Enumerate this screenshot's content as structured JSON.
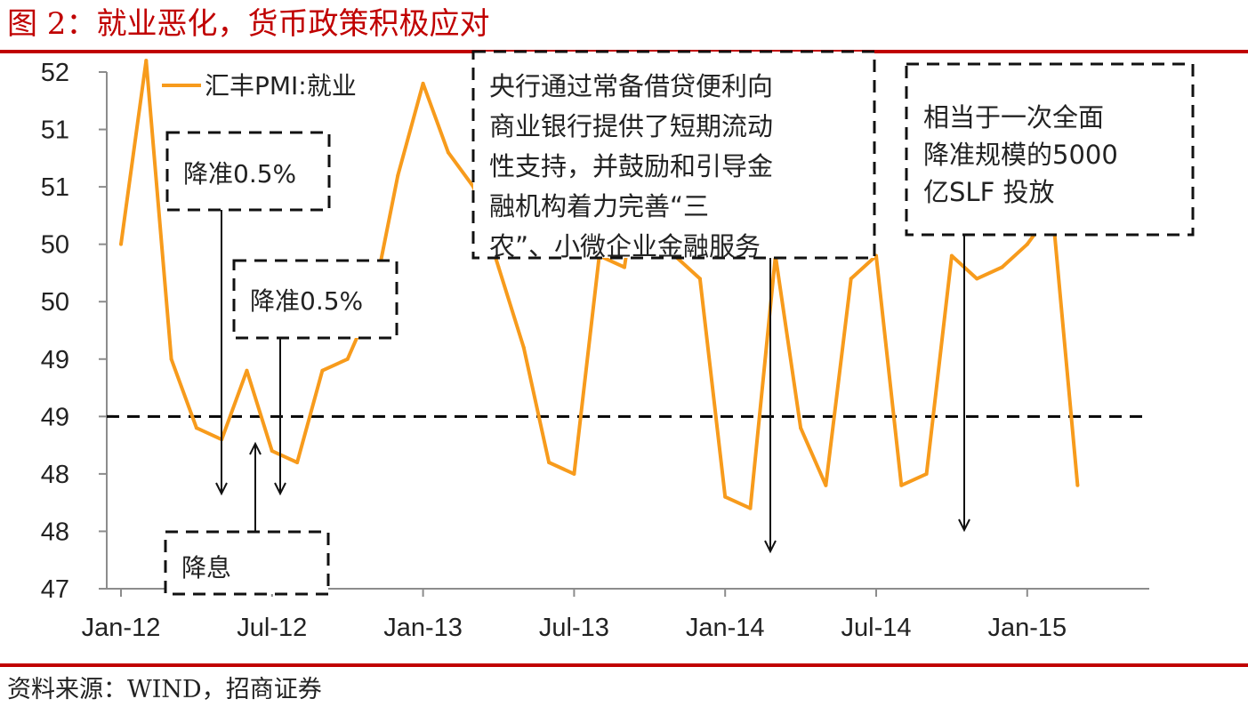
{
  "figure": {
    "title": "图 2：就业恶化，货币政策积极应对",
    "source": "资料来源：WIND，招商证券"
  },
  "chart_data": {
    "type": "line",
    "series": [
      {
        "name": "汇丰PMI:就业",
        "color": "#f79b1c",
        "x": [
          "2012-01",
          "2012-02",
          "2012-03",
          "2012-04",
          "2012-05",
          "2012-06",
          "2012-07",
          "2012-08",
          "2012-09",
          "2012-10",
          "2012-11",
          "2012-12",
          "2013-01",
          "2013-02",
          "2013-03",
          "2013-04",
          "2013-05",
          "2013-06",
          "2013-07",
          "2013-08",
          "2013-09",
          "2013-10",
          "2013-11",
          "2013-12",
          "2014-01",
          "2014-02",
          "2014-03",
          "2014-04",
          "2014-05",
          "2014-06",
          "2014-07",
          "2014-08",
          "2014-09",
          "2014-10",
          "2014-11",
          "2014-12",
          "2015-01",
          "2015-02",
          "2015-03"
        ],
        "values": [
          50.0,
          51.6,
          49.0,
          48.4,
          48.3,
          48.9,
          48.2,
          48.1,
          48.9,
          49.0,
          49.5,
          50.6,
          51.4,
          50.8,
          50.5,
          49.8,
          49.1,
          48.1,
          48.0,
          49.9,
          49.8,
          51.3,
          49.9,
          49.7,
          47.8,
          47.7,
          49.9,
          48.4,
          47.9,
          49.7,
          49.9,
          47.9,
          48.0,
          49.9,
          49.7,
          49.8,
          50.0,
          50.3,
          47.9
        ]
      }
    ],
    "x_tick_labels": [
      "Jan-12",
      "Jul-12",
      "Jan-13",
      "Jul-13",
      "Jan-14",
      "Jul-14",
      "Jan-15"
    ],
    "y_tick_labels": [
      "47",
      "48",
      "48",
      "49",
      "49",
      "50",
      "50",
      "51",
      "51",
      "52"
    ],
    "ylim": [
      47.0,
      51.5
    ],
    "reference_line": {
      "y": 48.5,
      "style": "dashed",
      "color": "#000000"
    },
    "legend_position": "top-left",
    "grid": false,
    "annotations": [
      {
        "lines": [
          "降准0.5%"
        ],
        "points_to": "2012-06"
      },
      {
        "lines": [
          "降准0.5%"
        ],
        "points_to": "2012-07"
      },
      {
        "lines": [
          "降息"
        ],
        "points_to": "2012-07"
      },
      {
        "lines": [
          "央行通过常备借贷便利向",
          "商业银行提供了短期流动",
          "性支持，并鼓励和引导金",
          "融机构着力完善“三",
          "农”、小微企业金融服务"
        ],
        "points_to": "2014-02"
      },
      {
        "lines": [
          "相当于一次全面",
          "降准规模的5000",
          "亿SLF 投放"
        ],
        "points_to": "2014-10"
      }
    ]
  }
}
